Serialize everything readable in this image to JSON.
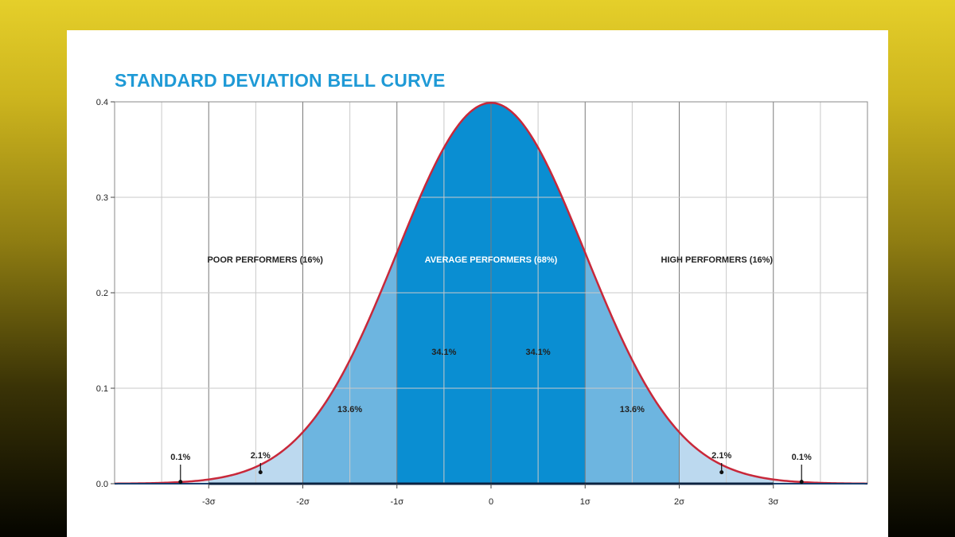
{
  "chart_data": {
    "type": "area",
    "title": "STANDARD DEVIATION BELL CURVE",
    "xlabel": "",
    "ylabel": "",
    "xlim": [
      -4,
      4
    ],
    "ylim": [
      0,
      0.4
    ],
    "grid": true,
    "y_ticks": [
      "0.0",
      "0.1",
      "0.2",
      "0.3",
      "0.4"
    ],
    "x_ticks": [
      {
        "x": -3,
        "label": "-3σ"
      },
      {
        "x": -2,
        "label": "-2σ"
      },
      {
        "x": -1,
        "label": "-1σ"
      },
      {
        "x": 0,
        "label": "0"
      },
      {
        "x": 1,
        "label": "1σ"
      },
      {
        "x": 2,
        "label": "2σ"
      },
      {
        "x": 3,
        "label": "3σ"
      }
    ],
    "curve": {
      "distribution": "normal",
      "mean": 0,
      "sd": 1,
      "color": "#c8283a"
    },
    "regions": [
      {
        "from": -3,
        "to": -2,
        "percent": "2.1%",
        "color": "#bcd9ef"
      },
      {
        "from": -2,
        "to": -1,
        "percent": "13.6%",
        "color": "#6db5e0"
      },
      {
        "from": -1,
        "to": 0,
        "percent": "34.1%",
        "color": "#0a8ed2"
      },
      {
        "from": 0,
        "to": 1,
        "percent": "34.1%",
        "color": "#0a8ed2"
      },
      {
        "from": 1,
        "to": 2,
        "percent": "13.6%",
        "color": "#6db5e0"
      },
      {
        "from": 2,
        "to": 3,
        "percent": "2.1%",
        "color": "#bcd9ef"
      }
    ],
    "tail_markers": [
      {
        "x": -3.3,
        "label": "0.1%"
      },
      {
        "x": -2.45,
        "label": "2.1%"
      },
      {
        "x": 2.45,
        "label": "2.1%"
      },
      {
        "x": 3.3,
        "label": "0.1%"
      }
    ],
    "group_labels": [
      {
        "text": "POOR PERFORMERS (16%)",
        "x": -2.4,
        "y": 0.235
      },
      {
        "text": "AVERAGE PERFORMERS (68%)",
        "x": 0,
        "y": 0.235
      },
      {
        "text": "HIGH PERFORMERS (16%)",
        "x": 2.4,
        "y": 0.235
      }
    ]
  }
}
